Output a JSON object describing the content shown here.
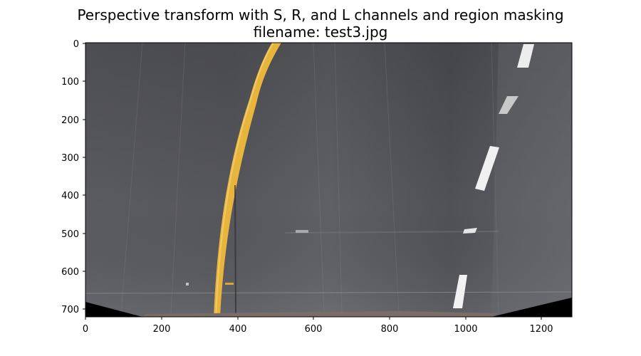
{
  "figure": {
    "title_line1": "Perspective transform with S, R, and L channels and region masking",
    "title_line2": "filename: test3.jpg"
  },
  "axes": {
    "x_ticks": [
      0,
      200,
      400,
      600,
      800,
      1000,
      1200
    ],
    "y_ticks": [
      0,
      100,
      200,
      300,
      400,
      500,
      600,
      700
    ],
    "xlim": [
      0,
      1280
    ],
    "ylim": [
      720,
      0
    ]
  },
  "colors": {
    "road_dark": "#4d4e53",
    "road_light": "#6a6b70",
    "lane_yellow": "#e8b43a",
    "lane_white": "#ededed",
    "mask_black": "#000000",
    "hood": "#7a6d68"
  }
}
